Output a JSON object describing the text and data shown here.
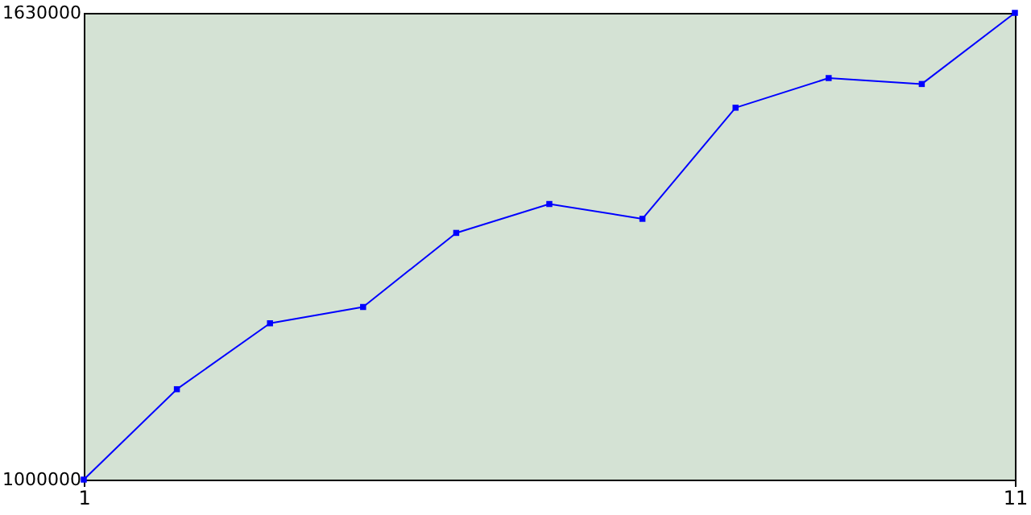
{
  "chart_data": {
    "type": "line",
    "x": [
      1,
      2,
      3,
      4,
      5,
      6,
      7,
      8,
      9,
      10,
      11
    ],
    "series": [
      {
        "color": "#0000ff",
        "values": [
          1000000,
          1122000,
          1211000,
          1233000,
          1333000,
          1372000,
          1352000,
          1502000,
          1542000,
          1534000,
          1630000
        ]
      }
    ],
    "xlim": [
      1,
      11
    ],
    "xticks": [
      1,
      11
    ],
    "ylim": [
      1000000,
      1630000
    ],
    "yticks": [
      1000000,
      1630000
    ],
    "grid": false,
    "marker": "square",
    "line_style": "solid"
  }
}
